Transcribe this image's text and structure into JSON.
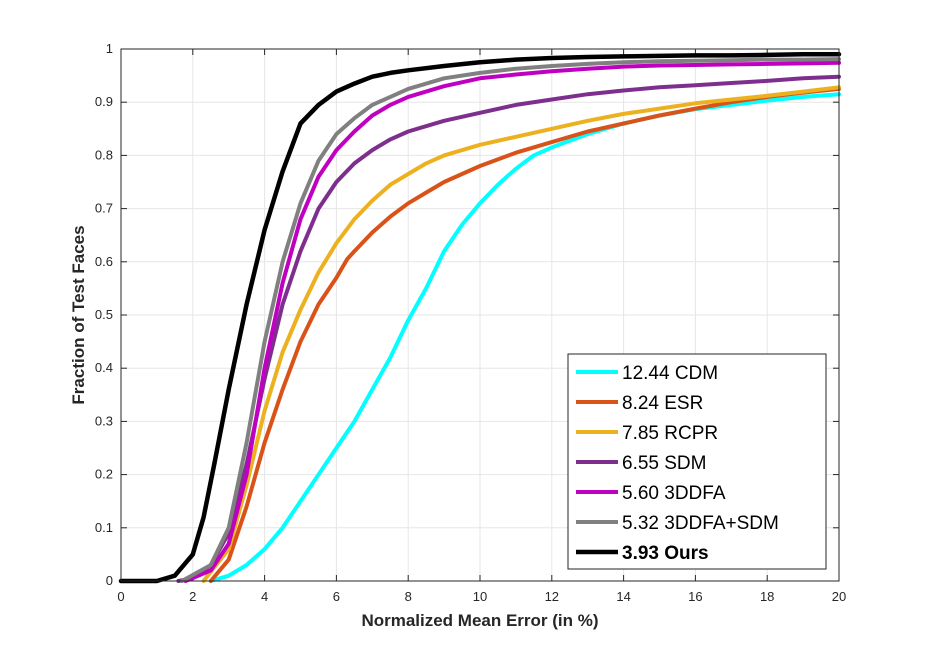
{
  "chart_data": {
    "type": "line",
    "title": "",
    "xlabel": "Normalized Mean Error (in %)",
    "ylabel": "Fraction of Test Faces",
    "xlim": [
      0,
      20
    ],
    "ylim": [
      0,
      1
    ],
    "xticks": [
      "0",
      "2",
      "4",
      "6",
      "8",
      "10",
      "12",
      "14",
      "16",
      "18",
      "20"
    ],
    "yticks": [
      "0",
      "0.1",
      "0.2",
      "0.3",
      "0.4",
      "0.5",
      "0.6",
      "0.7",
      "0.8",
      "0.9",
      "1"
    ],
    "grid": true,
    "legend_position": "bottom-right",
    "series": [
      {
        "name": "12.44 CDM",
        "color": "#00ffff",
        "bold": false,
        "points": [
          [
            2.5,
            0
          ],
          [
            3,
            0.01
          ],
          [
            3.5,
            0.03
          ],
          [
            4,
            0.06
          ],
          [
            4.5,
            0.1
          ],
          [
            5,
            0.15
          ],
          [
            5.5,
            0.2
          ],
          [
            6,
            0.25
          ],
          [
            6.5,
            0.3
          ],
          [
            7,
            0.36
          ],
          [
            7.5,
            0.42
          ],
          [
            8,
            0.49
          ],
          [
            8.5,
            0.55
          ],
          [
            9,
            0.62
          ],
          [
            9.5,
            0.67
          ],
          [
            10,
            0.71
          ],
          [
            10.5,
            0.745
          ],
          [
            11,
            0.775
          ],
          [
            11.5,
            0.8
          ],
          [
            12,
            0.815
          ],
          [
            13,
            0.84
          ],
          [
            14,
            0.86
          ],
          [
            15,
            0.875
          ],
          [
            16,
            0.887
          ],
          [
            17,
            0.895
          ],
          [
            18,
            0.903
          ],
          [
            19,
            0.91
          ],
          [
            20,
            0.915
          ]
        ]
      },
      {
        "name": "8.24 ESR",
        "color": "#d95319",
        "bold": false,
        "points": [
          [
            2.5,
            0
          ],
          [
            3,
            0.04
          ],
          [
            3.5,
            0.14
          ],
          [
            4,
            0.26
          ],
          [
            4.5,
            0.36
          ],
          [
            5,
            0.45
          ],
          [
            5.5,
            0.52
          ],
          [
            6,
            0.57
          ],
          [
            6.3,
            0.605
          ],
          [
            6.5,
            0.62
          ],
          [
            7,
            0.655
          ],
          [
            7.5,
            0.685
          ],
          [
            8,
            0.71
          ],
          [
            8.5,
            0.73
          ],
          [
            9,
            0.75
          ],
          [
            10,
            0.78
          ],
          [
            11,
            0.805
          ],
          [
            12,
            0.825
          ],
          [
            13,
            0.845
          ],
          [
            14,
            0.86
          ],
          [
            15,
            0.875
          ],
          [
            16,
            0.888
          ],
          [
            17,
            0.9
          ],
          [
            18,
            0.91
          ],
          [
            19,
            0.918
          ],
          [
            20,
            0.925
          ]
        ]
      },
      {
        "name": "7.85 RCPR",
        "color": "#edb120",
        "bold": false,
        "points": [
          [
            2.3,
            0
          ],
          [
            3,
            0.06
          ],
          [
            3.5,
            0.18
          ],
          [
            4,
            0.32
          ],
          [
            4.5,
            0.43
          ],
          [
            5,
            0.51
          ],
          [
            5.5,
            0.58
          ],
          [
            6,
            0.635
          ],
          [
            6.5,
            0.68
          ],
          [
            7,
            0.715
          ],
          [
            7.5,
            0.745
          ],
          [
            8,
            0.765
          ],
          [
            8.5,
            0.785
          ],
          [
            9,
            0.8
          ],
          [
            10,
            0.82
          ],
          [
            11,
            0.835
          ],
          [
            12,
            0.85
          ],
          [
            13,
            0.865
          ],
          [
            14,
            0.878
          ],
          [
            15,
            0.888
          ],
          [
            16,
            0.898
          ],
          [
            17,
            0.905
          ],
          [
            18,
            0.912
          ],
          [
            19,
            0.92
          ],
          [
            20,
            0.928
          ]
        ]
      },
      {
        "name": "6.55 SDM",
        "color": "#7e2f8e",
        "bold": false,
        "points": [
          [
            1.6,
            0
          ],
          [
            2,
            0.005
          ],
          [
            2.5,
            0.03
          ],
          [
            3,
            0.09
          ],
          [
            3.5,
            0.22
          ],
          [
            4,
            0.38
          ],
          [
            4.5,
            0.52
          ],
          [
            5,
            0.62
          ],
          [
            5.5,
            0.7
          ],
          [
            6,
            0.75
          ],
          [
            6.5,
            0.785
          ],
          [
            7,
            0.81
          ],
          [
            7.5,
            0.83
          ],
          [
            8,
            0.845
          ],
          [
            9,
            0.865
          ],
          [
            10,
            0.88
          ],
          [
            11,
            0.895
          ],
          [
            12,
            0.905
          ],
          [
            13,
            0.915
          ],
          [
            14,
            0.922
          ],
          [
            15,
            0.928
          ],
          [
            16,
            0.932
          ],
          [
            17,
            0.936
          ],
          [
            18,
            0.94
          ],
          [
            19,
            0.945
          ],
          [
            20,
            0.948
          ]
        ]
      },
      {
        "name": "5.60 3DDFA",
        "color": "#c000c0",
        "bold": false,
        "points": [
          [
            1.8,
            0
          ],
          [
            2.5,
            0.02
          ],
          [
            3,
            0.07
          ],
          [
            3.5,
            0.2
          ],
          [
            4,
            0.4
          ],
          [
            4.5,
            0.56
          ],
          [
            5,
            0.68
          ],
          [
            5.5,
            0.76
          ],
          [
            6,
            0.81
          ],
          [
            6.5,
            0.845
          ],
          [
            7,
            0.875
          ],
          [
            7.5,
            0.895
          ],
          [
            8,
            0.91
          ],
          [
            9,
            0.93
          ],
          [
            10,
            0.945
          ],
          [
            11,
            0.952
          ],
          [
            12,
            0.958
          ],
          [
            13,
            0.963
          ],
          [
            14,
            0.967
          ],
          [
            15,
            0.969
          ],
          [
            16,
            0.97
          ],
          [
            17,
            0.971
          ],
          [
            18,
            0.972
          ],
          [
            19,
            0.973
          ],
          [
            20,
            0.974
          ]
        ]
      },
      {
        "name": "5.32 3DDFA+SDM",
        "color": "#808080",
        "bold": false,
        "points": [
          [
            1.7,
            0
          ],
          [
            2.5,
            0.03
          ],
          [
            3,
            0.1
          ],
          [
            3.5,
            0.26
          ],
          [
            4,
            0.45
          ],
          [
            4.5,
            0.6
          ],
          [
            5,
            0.71
          ],
          [
            5.5,
            0.79
          ],
          [
            6,
            0.84
          ],
          [
            6.5,
            0.87
          ],
          [
            7,
            0.895
          ],
          [
            7.5,
            0.91
          ],
          [
            8,
            0.925
          ],
          [
            9,
            0.945
          ],
          [
            10,
            0.955
          ],
          [
            11,
            0.963
          ],
          [
            12,
            0.968
          ],
          [
            13,
            0.972
          ],
          [
            14,
            0.975
          ],
          [
            15,
            0.977
          ],
          [
            16,
            0.978
          ],
          [
            17,
            0.979
          ],
          [
            18,
            0.98
          ],
          [
            19,
            0.98
          ],
          [
            20,
            0.981
          ]
        ]
      },
      {
        "name": "3.93 Ours",
        "color": "#000000",
        "bold": true,
        "points": [
          [
            0,
            0
          ],
          [
            1,
            0
          ],
          [
            1.5,
            0.01
          ],
          [
            2,
            0.05
          ],
          [
            2.3,
            0.12
          ],
          [
            2.6,
            0.22
          ],
          [
            3,
            0.36
          ],
          [
            3.5,
            0.52
          ],
          [
            4,
            0.66
          ],
          [
            4.5,
            0.77
          ],
          [
            5,
            0.86
          ],
          [
            5.5,
            0.895
          ],
          [
            6,
            0.92
          ],
          [
            6.5,
            0.935
          ],
          [
            7,
            0.948
          ],
          [
            7.5,
            0.955
          ],
          [
            8,
            0.96
          ],
          [
            9,
            0.968
          ],
          [
            10,
            0.975
          ],
          [
            11,
            0.98
          ],
          [
            12,
            0.983
          ],
          [
            13,
            0.985
          ],
          [
            14,
            0.986
          ],
          [
            15,
            0.987
          ],
          [
            16,
            0.988
          ],
          [
            17,
            0.988
          ],
          [
            18,
            0.989
          ],
          [
            19,
            0.99
          ],
          [
            20,
            0.99
          ]
        ]
      }
    ]
  }
}
